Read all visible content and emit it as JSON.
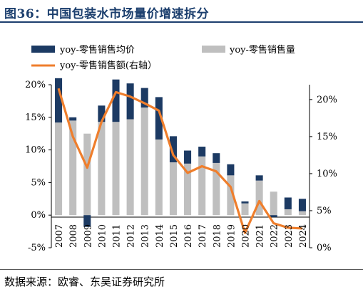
{
  "figure": {
    "title": "图36：中国包装水市场量价增速拆分",
    "source": "数据来源：欧睿、东吴证券研究所"
  },
  "colors": {
    "title": "#1c3f6e",
    "price_bar": "#1c3a63",
    "volume_bar": "#bfbfbf",
    "value_line": "#ef7e2c"
  },
  "chart_data": {
    "type": "bar",
    "stacked": true,
    "categories": [
      "2007",
      "2008",
      "2009",
      "2010",
      "2011",
      "2012",
      "2013",
      "2014",
      "2015",
      "2016",
      "2017",
      "2018",
      "2019",
      "2020",
      "2021",
      "2022",
      "2023",
      "2024"
    ],
    "series": [
      {
        "name": "yoy-零售销售均价",
        "axis": "left",
        "type": "bar",
        "values": [
          6.8,
          0.5,
          -1.8,
          2.5,
          6.5,
          5.5,
          3.0,
          6.5,
          4.0,
          2.0,
          1.5,
          1.5,
          1.7,
          0.3,
          0.8,
          -0.3,
          1.8,
          1.9
        ]
      },
      {
        "name": "yoy-零售销售量",
        "axis": "left",
        "type": "bar",
        "values": [
          14.2,
          14.5,
          12.5,
          14.3,
          14.3,
          14.7,
          16.5,
          11.6,
          8.1,
          7.9,
          9.0,
          8.0,
          6.1,
          1.8,
          5.3,
          3.6,
          0.9,
          0.6
        ]
      },
      {
        "name": "yoy-零售销售额(右轴）",
        "axis": "right",
        "type": "line",
        "values": [
          21.5,
          15.0,
          10.8,
          17.0,
          21.0,
          20.4,
          19.5,
          18.5,
          12.5,
          10.1,
          11.0,
          10.3,
          8.2,
          2.0,
          6.3,
          3.3,
          2.7,
          2.6
        ]
      }
    ],
    "y_left": {
      "min": -5,
      "max": 20,
      "ticks": [
        "-5%",
        "0%",
        "5%",
        "10%",
        "15%",
        "20%"
      ]
    },
    "y_right": {
      "min": 0,
      "max": 22,
      "ticks": [
        "0%",
        "5%",
        "10%",
        "15%",
        "20%"
      ]
    },
    "legend": "top"
  }
}
